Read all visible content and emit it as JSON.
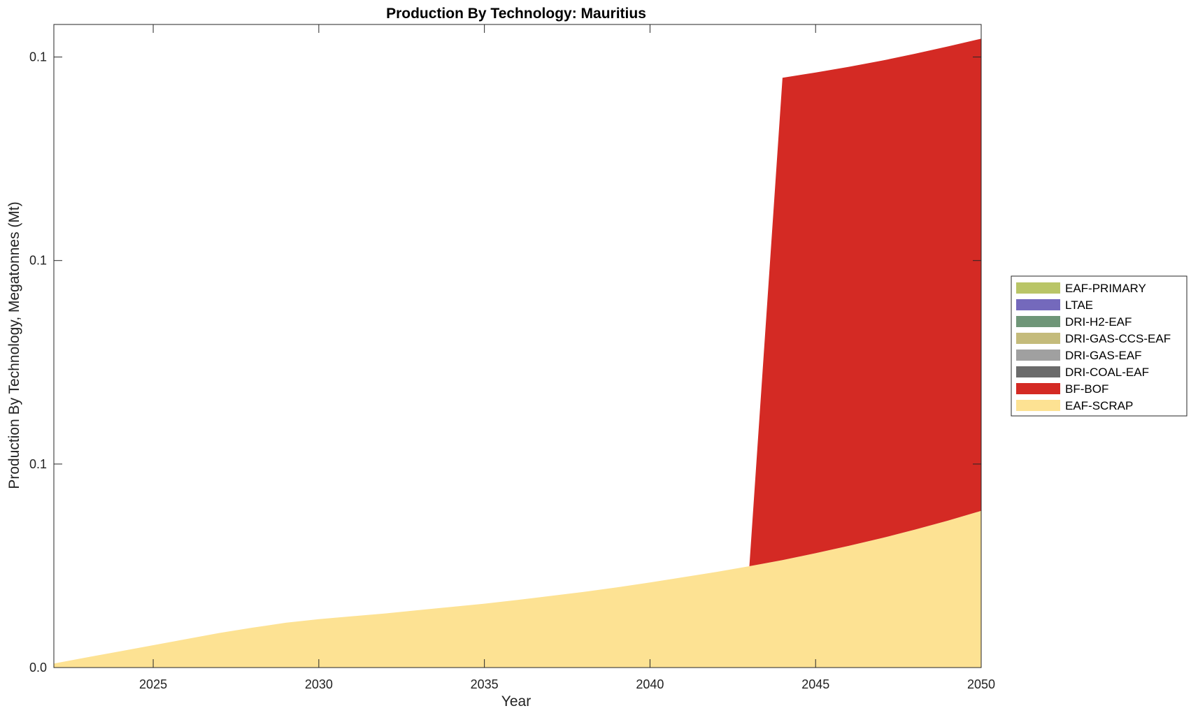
{
  "chart_data": {
    "type": "area",
    "stacked": true,
    "title": "Production By Technology: Mauritius",
    "xlabel": "Year",
    "ylabel": "Production By Technology, Megatonnes (Mt)",
    "xlim": [
      2022,
      2050
    ],
    "ylim": [
      0,
      0.158
    ],
    "x_ticks": [
      2025,
      2030,
      2035,
      2040,
      2045,
      2050
    ],
    "y_ticks": [
      {
        "value": 0.0,
        "label": "0.0"
      },
      {
        "value": 0.05,
        "label": "0.1"
      },
      {
        "value": 0.1,
        "label": "0.1"
      },
      {
        "value": 0.15,
        "label": "0.1"
      }
    ],
    "grid": false,
    "legend_position": "right",
    "x": [
      2022,
      2023,
      2024,
      2025,
      2026,
      2027,
      2028,
      2029,
      2030,
      2031,
      2032,
      2033,
      2034,
      2035,
      2036,
      2037,
      2038,
      2039,
      2040,
      2041,
      2042,
      2043,
      2044,
      2045,
      2046,
      2047,
      2048,
      2049,
      2050
    ],
    "series": [
      {
        "name": "EAF-SCRAP",
        "color": "#FDE293",
        "values": [
          0.001,
          0.0025,
          0.004,
          0.0055,
          0.007,
          0.0085,
          0.0098,
          0.011,
          0.0119,
          0.0126,
          0.0133,
          0.0141,
          0.0149,
          0.0157,
          0.0166,
          0.0176,
          0.0186,
          0.0197,
          0.0209,
          0.0222,
          0.0235,
          0.0249,
          0.0264,
          0.0281,
          0.0299,
          0.0318,
          0.0339,
          0.0361,
          0.0385
        ]
      },
      {
        "name": "BF-BOF",
        "color": "#D42A24",
        "values": [
          0,
          0,
          0,
          0,
          0,
          0,
          0,
          0,
          0,
          0,
          0,
          0,
          0,
          0,
          0,
          0,
          0,
          0,
          0,
          0,
          0,
          0,
          0.1185,
          0.1181,
          0.1177,
          0.1173,
          0.1169,
          0.1165,
          0.116
        ]
      },
      {
        "name": "DRI-COAL-EAF",
        "color": "#6B6B6B",
        "values": [
          0,
          0,
          0,
          0,
          0,
          0,
          0,
          0,
          0,
          0,
          0,
          0,
          0,
          0,
          0,
          0,
          0,
          0,
          0,
          0,
          0,
          0,
          0,
          0,
          0,
          0,
          0,
          0,
          0
        ]
      },
      {
        "name": "DRI-GAS-EAF",
        "color": "#A0A0A0",
        "values": [
          0,
          0,
          0,
          0,
          0,
          0,
          0,
          0,
          0,
          0,
          0,
          0,
          0,
          0,
          0,
          0,
          0,
          0,
          0,
          0,
          0,
          0,
          0,
          0,
          0,
          0,
          0,
          0,
          0
        ]
      },
      {
        "name": "DRI-GAS-CCS-EAF",
        "color": "#C4BB7B",
        "values": [
          0,
          0,
          0,
          0,
          0,
          0,
          0,
          0,
          0,
          0,
          0,
          0,
          0,
          0,
          0,
          0,
          0,
          0,
          0,
          0,
          0,
          0,
          0,
          0,
          0,
          0,
          0,
          0,
          0
        ]
      },
      {
        "name": "DRI-H2-EAF",
        "color": "#6F9678",
        "values": [
          0,
          0,
          0,
          0,
          0,
          0,
          0,
          0,
          0,
          0,
          0,
          0,
          0,
          0,
          0,
          0,
          0,
          0,
          0,
          0,
          0,
          0,
          0,
          0,
          0,
          0,
          0,
          0,
          0
        ]
      },
      {
        "name": "LTAE",
        "color": "#7469BC",
        "values": [
          0,
          0,
          0,
          0,
          0,
          0,
          0,
          0,
          0,
          0,
          0,
          0,
          0,
          0,
          0,
          0,
          0,
          0,
          0,
          0,
          0,
          0,
          0,
          0,
          0,
          0,
          0,
          0,
          0
        ]
      },
      {
        "name": "EAF-PRIMARY",
        "color": "#B9C567",
        "values": [
          0,
          0,
          0,
          0,
          0,
          0,
          0,
          0,
          0,
          0,
          0,
          0,
          0,
          0,
          0,
          0,
          0,
          0,
          0,
          0,
          0,
          0,
          0,
          0,
          0,
          0,
          0,
          0,
          0
        ]
      }
    ],
    "legend_order": [
      "EAF-PRIMARY",
      "LTAE",
      "DRI-H2-EAF",
      "DRI-GAS-CCS-EAF",
      "DRI-GAS-EAF",
      "DRI-COAL-EAF",
      "BF-BOF",
      "EAF-SCRAP"
    ]
  }
}
